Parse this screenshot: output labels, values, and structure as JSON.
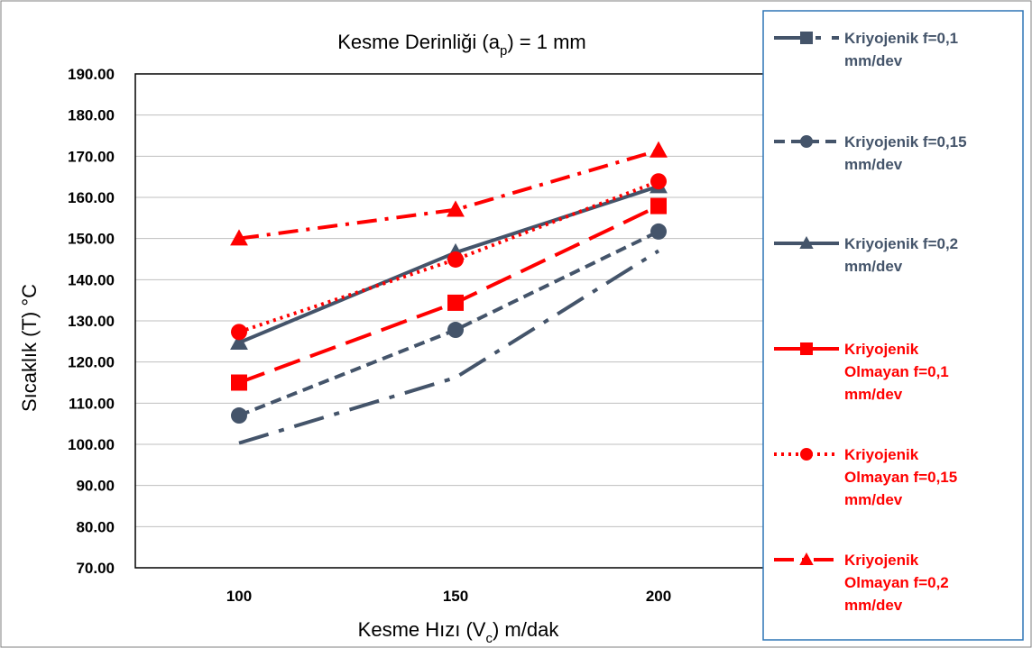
{
  "chart_data": {
    "type": "line",
    "title": "Kesme Derinliği (a",
    "title_sub": "p",
    "title_tail": ") = 1 mm",
    "xlabel": "Kesme Hızı (V",
    "xlabel_sub": "c",
    "xlabel_tail": ") m/dak",
    "ylabel": "Sıcaklık (T) °C",
    "categories": [
      "100",
      "150",
      "200"
    ],
    "x": [
      100,
      150,
      200
    ],
    "ylim": [
      70,
      190
    ],
    "yticks": [
      "70.00",
      "80.00",
      "90.00",
      "100.00",
      "110.00",
      "120.00",
      "130.00",
      "140.00",
      "150.00",
      "160.00",
      "170.00",
      "180.00",
      "190.00"
    ],
    "grid": true,
    "legend_position": "right",
    "series": [
      {
        "name": "Kriyojenik f=0,1 mm/dev",
        "legend_lines": [
          "Kriyojenik f=0,1",
          "mm/dev"
        ],
        "values": [
          100.3,
          116.2,
          147.0
        ],
        "color": "#44546A",
        "dash": "long-dash-dot",
        "marker": "square",
        "show_markers": false
      },
      {
        "name": "Kriyojenik f=0,15 mm/dev",
        "legend_lines": [
          "Kriyojenik f=0,15",
          "mm/dev"
        ],
        "values": [
          107.0,
          127.8,
          151.7
        ],
        "color": "#44546A",
        "dash": "dash",
        "marker": "circle",
        "show_markers": true
      },
      {
        "name": "Kriyojenik f=0,2 mm/dev",
        "legend_lines": [
          "Kriyojenik f=0,2",
          "mm/dev"
        ],
        "values": [
          124.7,
          146.6,
          162.7
        ],
        "color": "#44546A",
        "dash": "solid",
        "marker": "triangle",
        "show_markers": true
      },
      {
        "name": "Kriyojenik Olmayan f=0,1 mm/dev",
        "legend_lines": [
          "Kriyojenik",
          "Olmayan f=0,1",
          "mm/dev"
        ],
        "values": [
          115.0,
          134.4,
          157.9
        ],
        "color": "#FF0000",
        "dash": "long-dash",
        "marker": "square",
        "show_markers": true
      },
      {
        "name": "Kriyojenik Olmayan f=0,15 mm/dev",
        "legend_lines": [
          "Kriyojenik",
          "Olmayan f=0,15",
          "mm/dev"
        ],
        "values": [
          127.3,
          144.9,
          163.9
        ],
        "color": "#FF0000",
        "dash": "dot",
        "marker": "circle",
        "show_markers": true
      },
      {
        "name": "Kriyojenik Olmayan f=0,2 mm/dev",
        "legend_lines": [
          "Kriyojenik",
          "Olmayan f=0,2",
          "mm/dev"
        ],
        "values": [
          150.0,
          157.0,
          171.4
        ],
        "color": "#FF0000",
        "dash": "dash-dot",
        "marker": "triangle",
        "show_markers": true
      }
    ]
  }
}
